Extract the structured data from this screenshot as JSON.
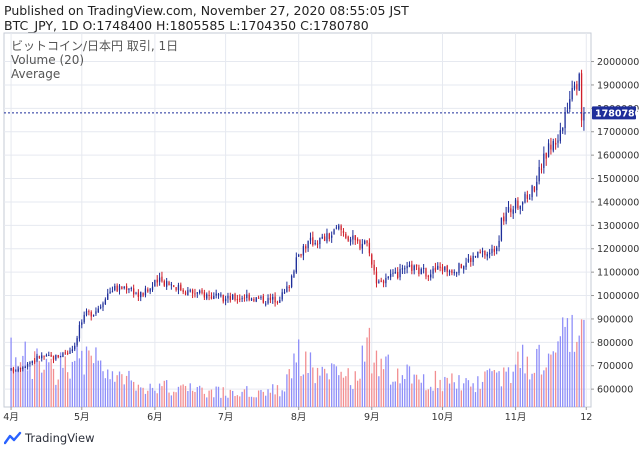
{
  "header": {
    "line1": "Published on TradingView.com, November 27, 2020 08:55:05 JST",
    "line2": "BTC_JPY, 1D O:1748400 H:1805585 L:1704350 C:1780780"
  },
  "legend": {
    "symbol": "ビットコイン/日本円 取引, 1日",
    "volume": "Volume (20)",
    "average": "Average"
  },
  "footer": {
    "brand": "TradingView"
  },
  "colors": {
    "up": "#1e2e9a",
    "down": "#d01f2a",
    "volume_up": "#8e8ef8",
    "volume_down": "#f28d90",
    "price_line": "#1e2e9a",
    "price_badge": "#1e2e9a",
    "grid": "#e6e9f0",
    "axis_text": "#333333"
  },
  "chart_data": {
    "type": "candlestick",
    "symbol": "BTC_JPY",
    "interval": "1D",
    "last_price": 1780780,
    "last_price_label": "1780780",
    "ohlc_last": {
      "open": 1748400,
      "high": 1805585,
      "low": 1704350,
      "close": 1780780
    },
    "y_axis": {
      "range": [
        545000,
        2075000
      ],
      "ticks": [
        600000,
        700000,
        800000,
        900000,
        1000000,
        1100000,
        1200000,
        1300000,
        1400000,
        1500000,
        1600000,
        1700000,
        1800000,
        1900000,
        2000000
      ],
      "tick_labels": [
        "600000",
        "700000",
        "800000",
        "900000",
        "1000000",
        "1100000",
        "1200000",
        "1300000",
        "1400000",
        "1500000",
        "1600000",
        "1700000",
        "1800000",
        "1900000",
        "2000000"
      ]
    },
    "x_axis": {
      "ticks": [
        {
          "label": "4月",
          "day": 0
        },
        {
          "label": "5月",
          "day": 30
        },
        {
          "label": "6月",
          "day": 61
        },
        {
          "label": "7月",
          "day": 91
        },
        {
          "label": "8月",
          "day": 122
        },
        {
          "label": "9月",
          "day": 153
        },
        {
          "label": "10月",
          "day": 183
        },
        {
          "label": "11月",
          "day": 214
        },
        {
          "label": "12",
          "day": 244
        }
      ],
      "day_range": [
        -3,
        246
      ]
    },
    "close_path": [
      [
        0,
        680000
      ],
      [
        6,
        705000
      ],
      [
        12,
        740000
      ],
      [
        18,
        735000
      ],
      [
        24,
        760000
      ],
      [
        27,
        790000
      ],
      [
        29,
        870000
      ],
      [
        32,
        920000
      ],
      [
        35,
        930000
      ],
      [
        38,
        960000
      ],
      [
        40,
        1000000
      ],
      [
        43,
        1030000
      ],
      [
        46,
        1030000
      ],
      [
        50,
        1040000
      ],
      [
        54,
        1000000
      ],
      [
        58,
        1020000
      ],
      [
        62,
        1060000
      ],
      [
        66,
        1060000
      ],
      [
        70,
        1040000
      ],
      [
        74,
        1020000
      ],
      [
        78,
        1010000
      ],
      [
        82,
        1005000
      ],
      [
        86,
        995000
      ],
      [
        90,
        985000
      ],
      [
        95,
        990000
      ],
      [
        100,
        1000000
      ],
      [
        105,
        985000
      ],
      [
        110,
        980000
      ],
      [
        113,
        990000
      ],
      [
        116,
        1010000
      ],
      [
        118,
        1050000
      ],
      [
        120,
        1120000
      ],
      [
        122,
        1170000
      ],
      [
        124,
        1210000
      ],
      [
        127,
        1230000
      ],
      [
        132,
        1240000
      ],
      [
        136,
        1260000
      ],
      [
        139,
        1290000
      ],
      [
        142,
        1260000
      ],
      [
        146,
        1230000
      ],
      [
        148,
        1220000
      ],
      [
        150,
        1240000
      ],
      [
        152,
        1200000
      ],
      [
        153,
        1130000
      ],
      [
        155,
        1070000
      ],
      [
        158,
        1060000
      ],
      [
        162,
        1080000
      ],
      [
        166,
        1100000
      ],
      [
        170,
        1120000
      ],
      [
        174,
        1100000
      ],
      [
        178,
        1100000
      ],
      [
        182,
        1120000
      ],
      [
        186,
        1110000
      ],
      [
        190,
        1120000
      ],
      [
        194,
        1150000
      ],
      [
        197,
        1170000
      ],
      [
        200,
        1180000
      ],
      [
        203,
        1180000
      ],
      [
        205,
        1200000
      ],
      [
        207,
        1250000
      ],
      [
        208,
        1310000
      ],
      [
        210,
        1350000
      ],
      [
        213,
        1380000
      ],
      [
        216,
        1400000
      ],
      [
        219,
        1420000
      ],
      [
        222,
        1470000
      ],
      [
        225,
        1560000
      ],
      [
        228,
        1630000
      ],
      [
        231,
        1660000
      ],
      [
        233,
        1700000
      ],
      [
        235,
        1750000
      ],
      [
        236,
        1820000
      ],
      [
        238,
        1880000
      ],
      [
        239,
        1930000
      ],
      [
        240,
        1900000
      ],
      [
        241,
        1970000
      ],
      [
        242,
        1950000
      ],
      [
        243,
        1760000
      ],
      [
        243.5,
        1780780
      ]
    ],
    "volume_profile": [
      [
        0,
        0.55
      ],
      [
        10,
        0.45
      ],
      [
        20,
        0.4
      ],
      [
        27,
        0.55
      ],
      [
        30,
        0.6
      ],
      [
        40,
        0.35
      ],
      [
        60,
        0.22
      ],
      [
        90,
        0.15
      ],
      [
        115,
        0.18
      ],
      [
        120,
        0.55
      ],
      [
        125,
        0.5
      ],
      [
        130,
        0.35
      ],
      [
        145,
        0.3
      ],
      [
        152,
        0.6
      ],
      [
        156,
        0.45
      ],
      [
        170,
        0.3
      ],
      [
        190,
        0.25
      ],
      [
        205,
        0.3
      ],
      [
        215,
        0.45
      ],
      [
        225,
        0.55
      ],
      [
        235,
        0.7
      ],
      [
        241,
        0.8
      ],
      [
        244,
        0.7
      ]
    ],
    "volume_range": [
      0,
      1
    ]
  }
}
